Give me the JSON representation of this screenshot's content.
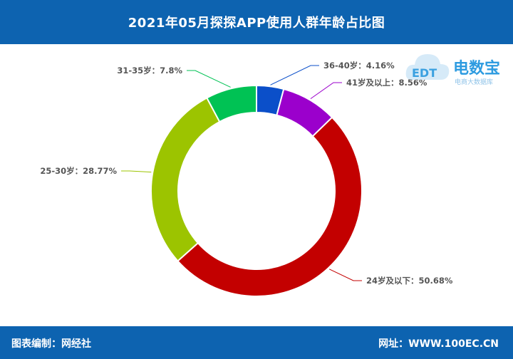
{
  "header": {
    "title": "2021年05月探探APP使用人群年龄占比图"
  },
  "footer": {
    "left": "图表编制：网经社",
    "right": "网址：WWW.100EC.CN"
  },
  "watermark": {
    "text": "电数宝",
    "sub": "电商大数据库",
    "logo": "EDT"
  },
  "chart_data": {
    "type": "pie",
    "subtype": "donut",
    "title": "2021年05月探探APP使用人群年龄占比图",
    "slices": [
      {
        "label": "36-40岁：4.16%",
        "value": 4.16,
        "color": "#0b4fc9"
      },
      {
        "label": "41岁及以上：8.56%",
        "value": 8.56,
        "color": "#9b00cc"
      },
      {
        "label": "24岁及以下：50.68%",
        "value": 50.68,
        "color": "#c30000"
      },
      {
        "label": "25-30岁：28.77%",
        "value": 28.77,
        "color": "#9cc400"
      },
      {
        "label": "31-35岁：7.8%",
        "value": 7.8,
        "color": "#00c254"
      }
    ]
  }
}
